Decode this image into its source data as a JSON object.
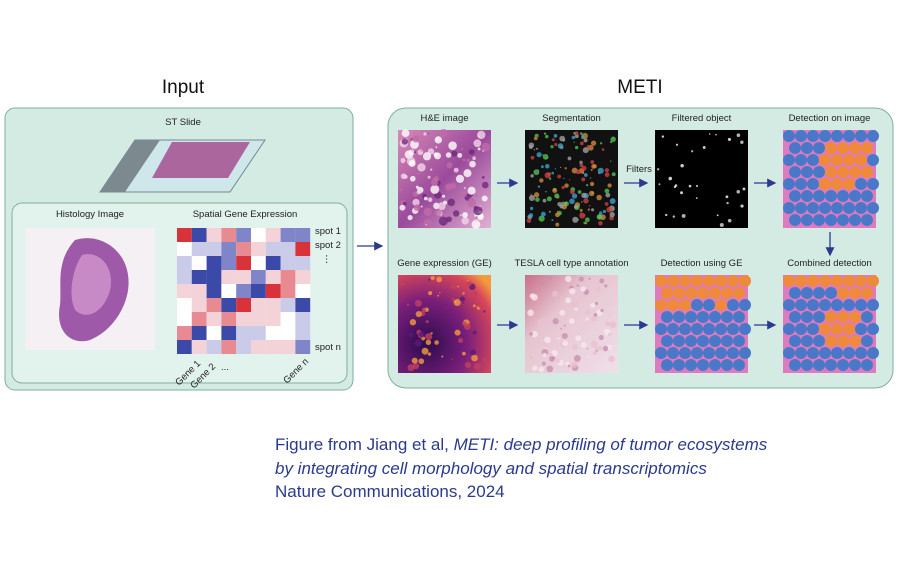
{
  "input": {
    "title": "Input",
    "slide_label": "ST Slide",
    "histology_label": "Histology Image",
    "expression_label": "Spatial Gene Expression",
    "spot_labels": [
      "spot 1",
      "spot 2",
      "⋮",
      "spot n"
    ],
    "gene_labels": [
      "Gene 1",
      "Gene 2",
      "...",
      "Gene n"
    ]
  },
  "meti": {
    "title": "METI",
    "filters_label": "Filters",
    "panels": [
      "H&E image",
      "Segmentation",
      "Filtered object",
      "Detection on image",
      "Gene expression (GE)",
      "TESLA cell type annotation",
      "Detection using GE",
      "Combined detection"
    ]
  },
  "caption": {
    "prefix": "Figure from Jiang et al, ",
    "title_line1": "METI: deep profiling of tumor ecosystems",
    "title_line2": "by integrating cell morphology and spatial transcriptomics",
    "journal": "Nature Communications, 2024"
  }
}
